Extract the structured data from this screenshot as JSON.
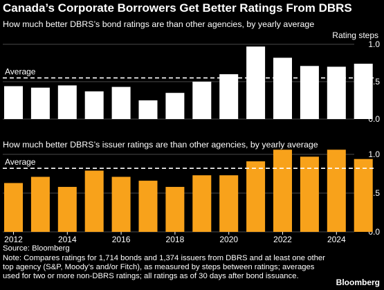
{
  "title": "Canada’s Corporate Borrowers Get Better Ratings From DBRS",
  "colors": {
    "background": "#000000",
    "bond_bars": "#ffffff",
    "issuer_bars": "#f8a21b",
    "text": "#ffffff",
    "grid": "#4a4a4a"
  },
  "chart_data": [
    {
      "type": "bar",
      "title": "How much better DBRS’s bond ratings are than other agencies, by yearly average",
      "ylabel": "Rating steps",
      "ylim": [
        0,
        1.0
      ],
      "yticks": [
        "0.0",
        "0.5",
        "1.0"
      ],
      "reference_line": {
        "label": "Average",
        "value": 0.55,
        "style": "dashed"
      },
      "x": [
        2012,
        2013,
        2014,
        2015,
        2016,
        2017,
        2018,
        2019,
        2020,
        2021,
        2022,
        2023,
        2024,
        2025
      ],
      "values": [
        0.44,
        0.42,
        0.45,
        0.37,
        0.43,
        0.25,
        0.35,
        0.5,
        0.6,
        0.97,
        0.82,
        0.71,
        0.7,
        0.74
      ],
      "grid": true
    },
    {
      "type": "bar",
      "title": "How much better DBRS’s issuer ratings are than other agencies, by yearly average",
      "ylim": [
        0,
        1.0
      ],
      "yticks": [
        "0.0",
        "0.5",
        "1.0"
      ],
      "reference_line": {
        "label": "Average",
        "value": 0.82,
        "style": "dashed"
      },
      "x": [
        2012,
        2013,
        2014,
        2015,
        2016,
        2017,
        2018,
        2019,
        2020,
        2021,
        2022,
        2023,
        2024,
        2025
      ],
      "xtick_labels": [
        "2012",
        "2014",
        "2016",
        "2018",
        "2020",
        "2022",
        "2024"
      ],
      "values": [
        0.63,
        0.71,
        0.58,
        0.79,
        0.71,
        0.66,
        0.58,
        0.73,
        0.73,
        0.91,
        1.06,
        0.97,
        1.06,
        0.94
      ],
      "grid": true
    }
  ],
  "footer": {
    "source": "Source: Bloomberg",
    "note": "Note: Compares ratings for 1,714 bonds and 1,374 issuers from DBRS and at least one other top agency (S&P, Moody’s and/or Fitch), as measured by steps between ratings; averages used for two or more non-DBRS ratings; all ratings as of 30 days after bond issuance.",
    "brand": "Bloomberg"
  }
}
